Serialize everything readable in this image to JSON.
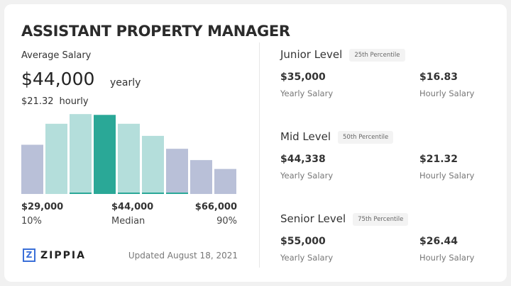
{
  "title": "ASSISTANT PROPERTY MANAGER",
  "average": {
    "label": "Average Salary",
    "yearly_value": "$44,000",
    "yearly_unit": "yearly",
    "hourly_value": "$21.32",
    "hourly_unit": "hourly"
  },
  "chart_data": {
    "type": "bar",
    "values": [
      61,
      87,
      99,
      98,
      87,
      72,
      56,
      42,
      31
    ],
    "highlight_index": 3,
    "colors": {
      "outer": "#b9c0d8",
      "inner": "#b4dedb",
      "median": "#2aa897"
    },
    "axis": [
      {
        "value": "$29,000",
        "label": "10%"
      },
      {
        "value": "$44,000",
        "label": "Median"
      },
      {
        "value": "$66,000",
        "label": "90%"
      }
    ]
  },
  "footer": {
    "logo": "ZIPPIA",
    "updated": "Updated August 18, 2021"
  },
  "levels": [
    {
      "name": "Junior Level",
      "badge": "25th Percentile",
      "yearly": "$35,000",
      "yearly_label": "Yearly Salary",
      "hourly": "$16.83",
      "hourly_label": "Hourly Salary"
    },
    {
      "name": "Mid Level",
      "badge": "50th Percentile",
      "yearly": "$44,338",
      "yearly_label": "Yearly Salary",
      "hourly": "$21.32",
      "hourly_label": "Hourly Salary"
    },
    {
      "name": "Senior Level",
      "badge": "75th Percentile",
      "yearly": "$55,000",
      "yearly_label": "Yearly Salary",
      "hourly": "$26.44",
      "hourly_label": "Hourly Salary"
    }
  ]
}
